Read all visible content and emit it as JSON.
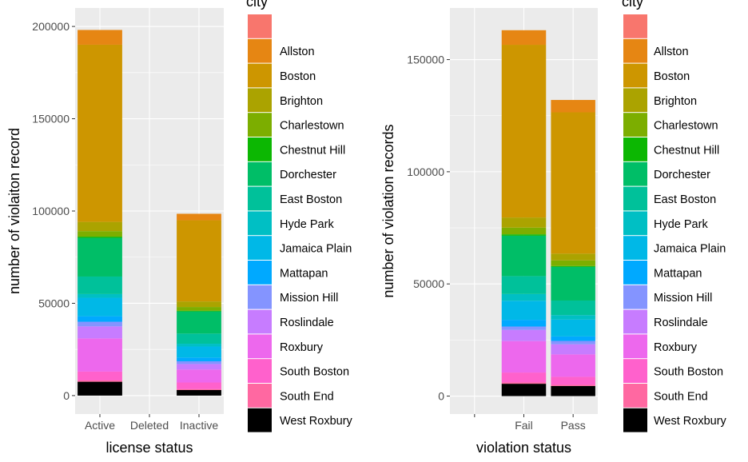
{
  "colors": {
    "panel_bg": "#ebebeb",
    "grid_major": "#ffffff",
    "axis_text": "#4d4d4d",
    "title_text": "#000000",
    "city_palette": [
      "#F8766D",
      "#E68613",
      "#CD9600",
      "#ABA300",
      "#7CAE00",
      "#0CB702",
      "#00BE67",
      "#00C19A",
      "#00BFC4",
      "#00B8E7",
      "#00A9FF",
      "#8494FF",
      "#C77CFF",
      "#ED68ED",
      "#FF61CC",
      "#FF68A1"
    ]
  },
  "legend": {
    "title": "city",
    "entries": [
      "",
      "Allston",
      "Boston",
      "Brighton",
      "Charlestown",
      "Chestnut Hill",
      "Dorchester",
      "East Boston",
      "Hyde Park",
      "Jamaica Plain",
      "Mattapan",
      "Mission Hill",
      "Roslindale",
      "Roxbury",
      "South Boston",
      "South End",
      "West Roxbury"
    ]
  },
  "chart_data": [
    {
      "type": "bar",
      "stacked": true,
      "xlabel": "license status",
      "ylabel": "number of violaiton record",
      "categories": [
        "Active",
        "Deleted",
        "Inactive"
      ],
      "ylim": [
        -10000,
        210000
      ],
      "yticks": [
        0,
        50000,
        100000,
        150000,
        200000
      ],
      "ytick_labels": [
        "0",
        "50000",
        "100000",
        "150000",
        "200000"
      ],
      "grid": true,
      "legend_position": "right",
      "series": [
        {
          "name": "",
          "values": [
            0,
            0,
            0
          ]
        },
        {
          "name": "Allston",
          "values": [
            8000,
            0,
            3500
          ]
        },
        {
          "name": "Boston",
          "values": [
            96000,
            0,
            44000
          ]
        },
        {
          "name": "Brighton",
          "values": [
            5000,
            0,
            3000
          ]
        },
        {
          "name": "Charlestown",
          "values": [
            3000,
            0,
            2000
          ]
        },
        {
          "name": "Chestnut Hill",
          "values": [
            600,
            0,
            400
          ]
        },
        {
          "name": "Dorchester",
          "values": [
            21000,
            0,
            12000
          ]
        },
        {
          "name": "East Boston",
          "values": [
            9500,
            0,
            5500
          ]
        },
        {
          "name": "Hyde Park",
          "values": [
            2000,
            0,
            1500
          ]
        },
        {
          "name": "Jamaica Plain",
          "values": [
            10000,
            0,
            6000
          ]
        },
        {
          "name": "Mattapan",
          "values": [
            3000,
            0,
            2000
          ]
        },
        {
          "name": "Mission Hill",
          "values": [
            2500,
            0,
            1500
          ]
        },
        {
          "name": "Roslindale",
          "values": [
            6500,
            0,
            3000
          ]
        },
        {
          "name": "Roxbury",
          "values": [
            18000,
            0,
            7000
          ]
        },
        {
          "name": "South Boston",
          "values": [
            4800,
            0,
            3600
          ]
        },
        {
          "name": "South End",
          "values": [
            700,
            0,
            500
          ]
        },
        {
          "name": "West Roxbury",
          "values": [
            7500,
            0,
            3000
          ]
        }
      ]
    },
    {
      "type": "bar",
      "stacked": true,
      "xlabel": "violation status",
      "ylabel": "number of violation records",
      "categories": [
        "",
        "Fail",
        "Pass"
      ],
      "ylim": [
        -8000,
        173000
      ],
      "yticks": [
        0,
        50000,
        100000,
        150000
      ],
      "ytick_labels": [
        "0",
        "50000",
        "100000",
        "150000"
      ],
      "grid": true,
      "legend_position": "right",
      "series": [
        {
          "name": "",
          "values": [
            0,
            0,
            0
          ]
        },
        {
          "name": "Allston",
          "values": [
            0,
            6500,
            5500
          ]
        },
        {
          "name": "Boston",
          "values": [
            0,
            77000,
            63000
          ]
        },
        {
          "name": "Brighton",
          "values": [
            0,
            4500,
            3000
          ]
        },
        {
          "name": "Charlestown",
          "values": [
            0,
            3000,
            2500
          ]
        },
        {
          "name": "Chestnut Hill",
          "values": [
            0,
            600,
            400
          ]
        },
        {
          "name": "Dorchester",
          "values": [
            0,
            18000,
            15000
          ]
        },
        {
          "name": "East Boston",
          "values": [
            0,
            8000,
            6500
          ]
        },
        {
          "name": "Hyde Park",
          "values": [
            0,
            3000,
            2000
          ]
        },
        {
          "name": "Jamaica Plain",
          "values": [
            0,
            8500,
            7500
          ]
        },
        {
          "name": "Mattapan",
          "values": [
            0,
            3000,
            2000
          ]
        },
        {
          "name": "Mission Hill",
          "values": [
            0,
            1500,
            1500
          ]
        },
        {
          "name": "Roslindale",
          "values": [
            0,
            5000,
            4500
          ]
        },
        {
          "name": "Roxbury",
          "values": [
            0,
            14000,
            10000
          ]
        },
        {
          "name": "South Boston",
          "values": [
            0,
            4400,
            3600
          ]
        },
        {
          "name": "South End",
          "values": [
            0,
            600,
            500
          ]
        },
        {
          "name": "West Roxbury",
          "values": [
            0,
            5500,
            4500
          ]
        }
      ]
    }
  ]
}
